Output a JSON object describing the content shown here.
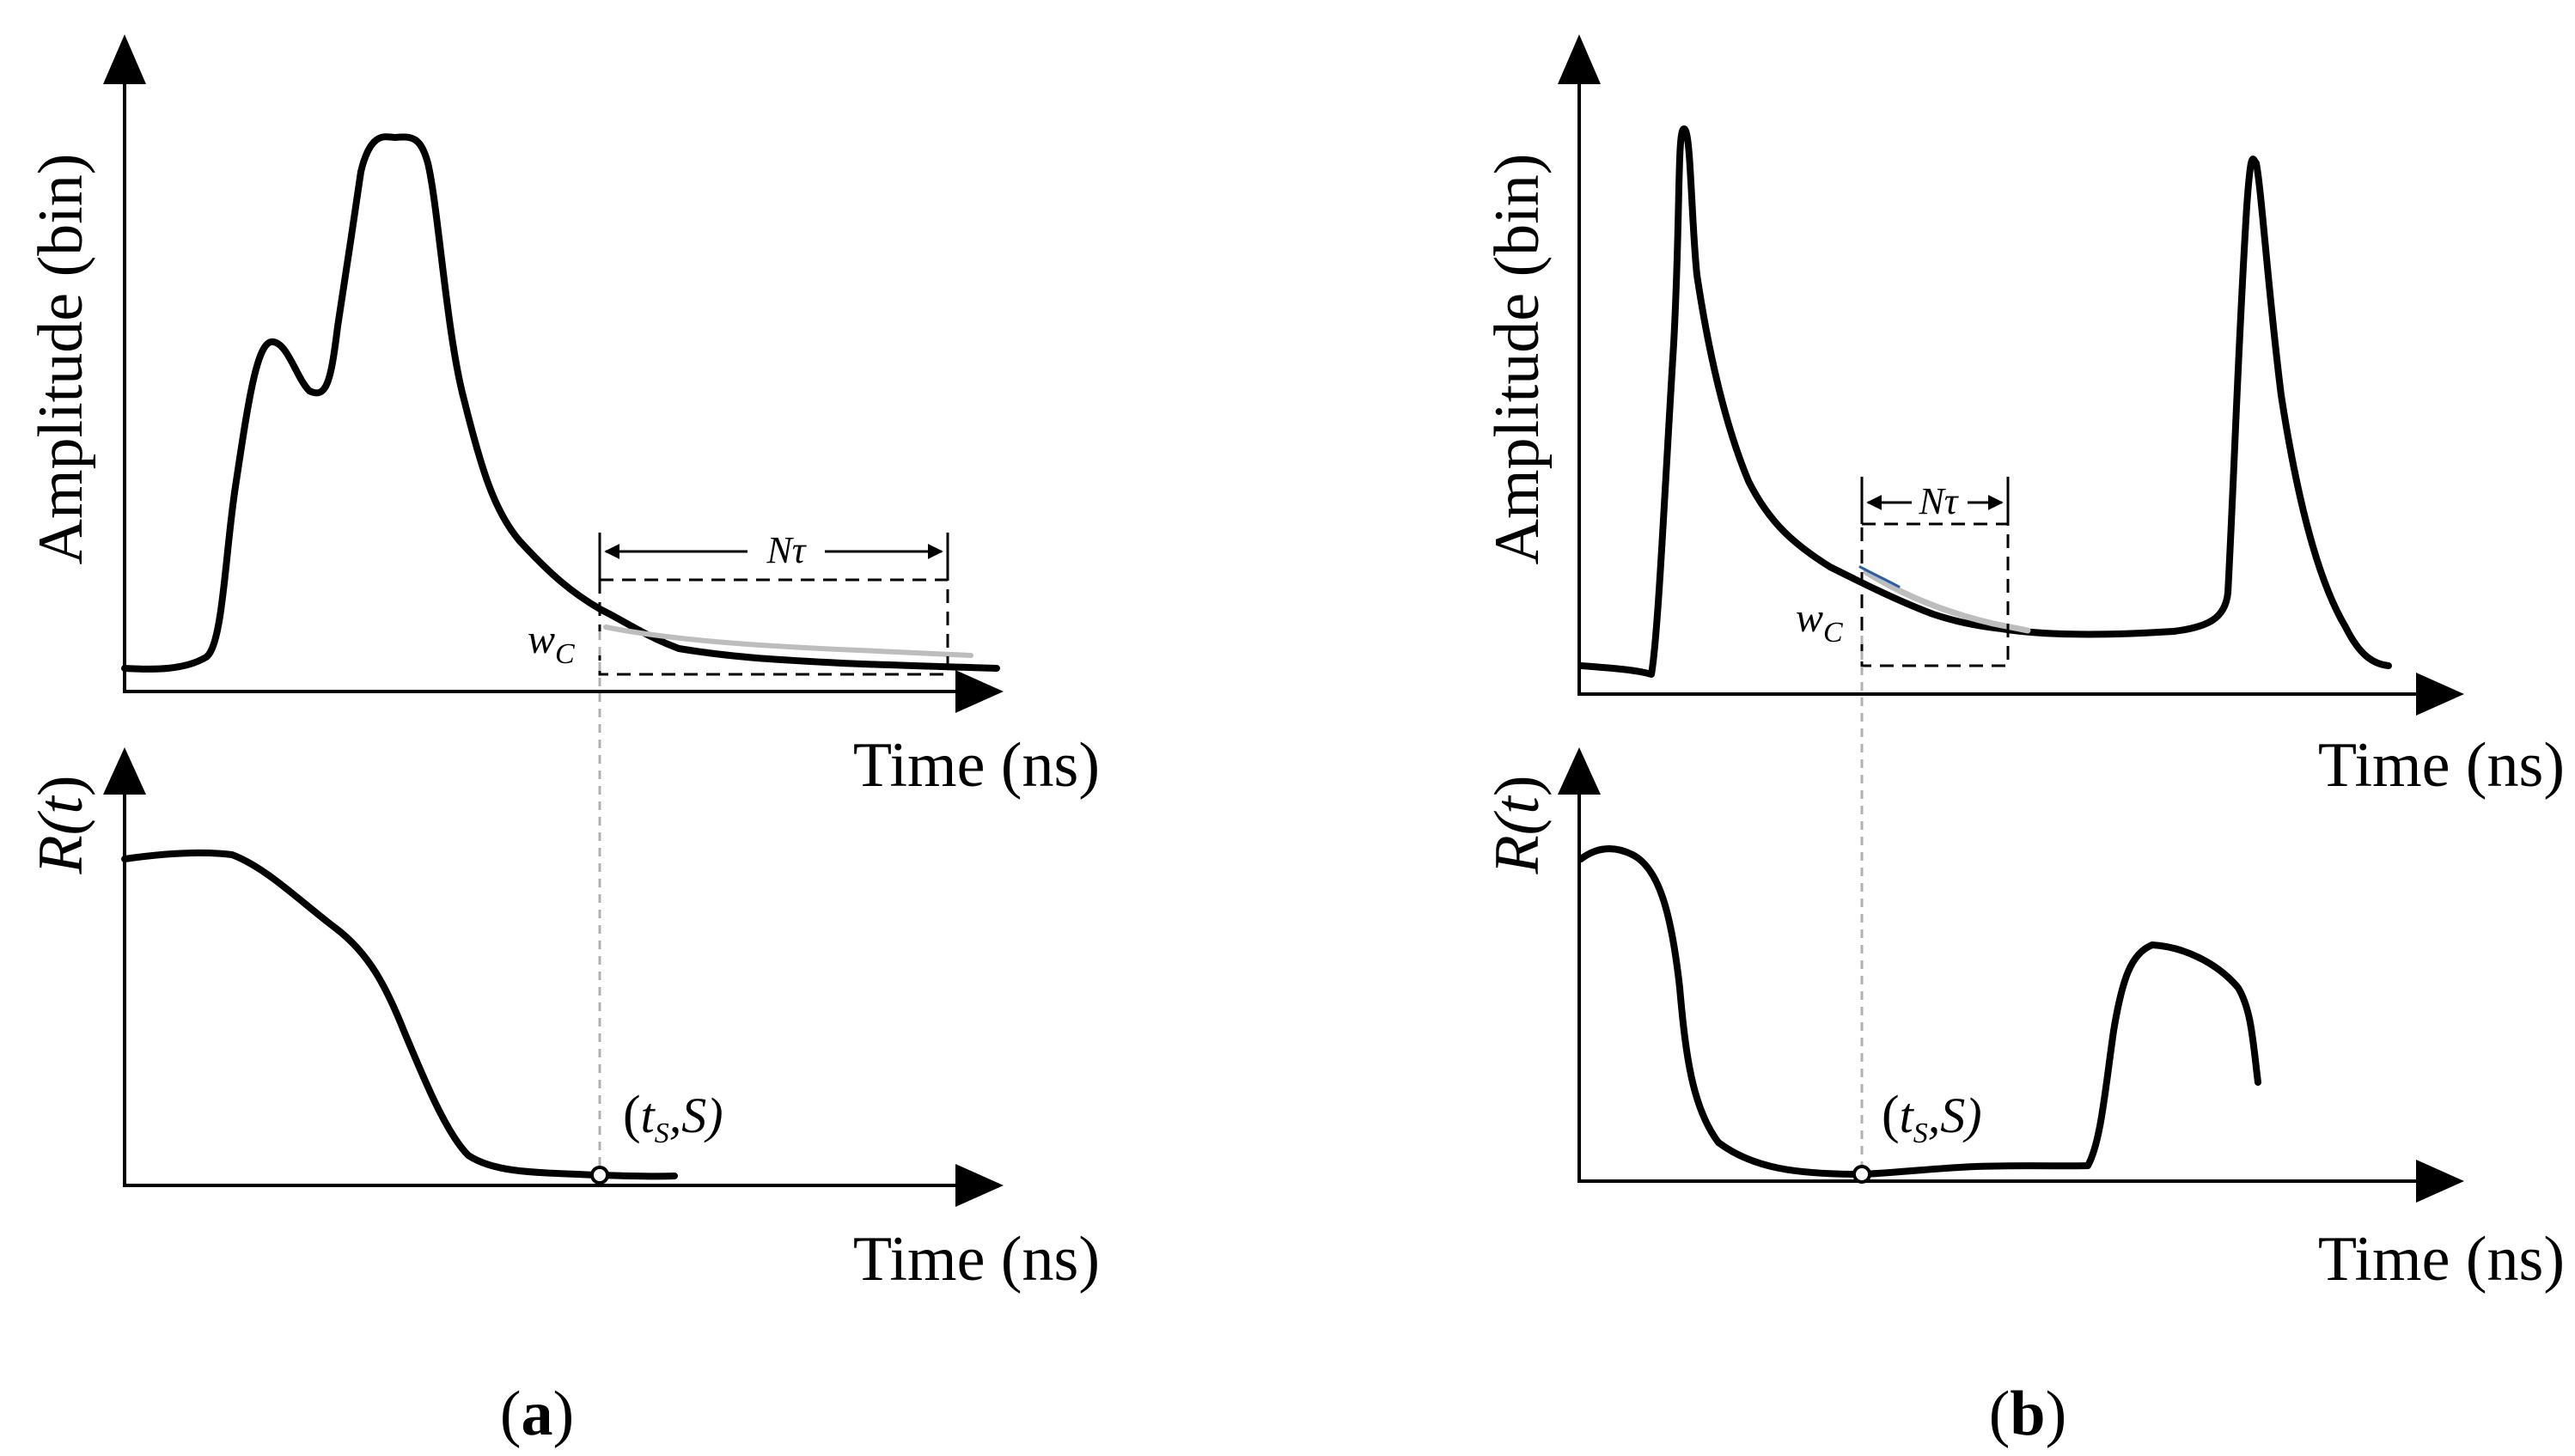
{
  "panels": [
    {
      "id": "a",
      "panel_label_open": "(",
      "panel_label_letter": "a",
      "panel_label_close": ")",
      "top_plot": {
        "ylabel": "Amplitude (bin)",
        "xlabel": "Time (ns)",
        "window_label": "Nτ",
        "point_label_main": "w",
        "point_label_sub": "C"
      },
      "bottom_plot": {
        "ylabel_main": "R(",
        "ylabel_var": "t",
        "ylabel_close": ")",
        "xlabel": "Time (ns)",
        "marker_label_open": "(",
        "marker_label_t": "t",
        "marker_label_sub": "S",
        "marker_label_rest": ",S)"
      }
    },
    {
      "id": "b",
      "panel_label_open": "(",
      "panel_label_letter": "b",
      "panel_label_close": ")",
      "top_plot": {
        "ylabel": "Amplitude (bin)",
        "xlabel": "Time (ns)",
        "window_label": "Nτ",
        "point_label_main": "w",
        "point_label_sub": "C"
      },
      "bottom_plot": {
        "ylabel_main": "R(",
        "ylabel_var": "t",
        "ylabel_close": ")",
        "xlabel": "Time (ns)",
        "marker_label_open": "(",
        "marker_label_t": "t",
        "marker_label_sub": "S",
        "marker_label_rest": ",S)"
      }
    }
  ],
  "colors": {
    "curve": "#000000",
    "fit_curve": "#bdbdbd",
    "guide_line": "#b0b0b0",
    "fit_edge_b": "#2a5ea8"
  }
}
